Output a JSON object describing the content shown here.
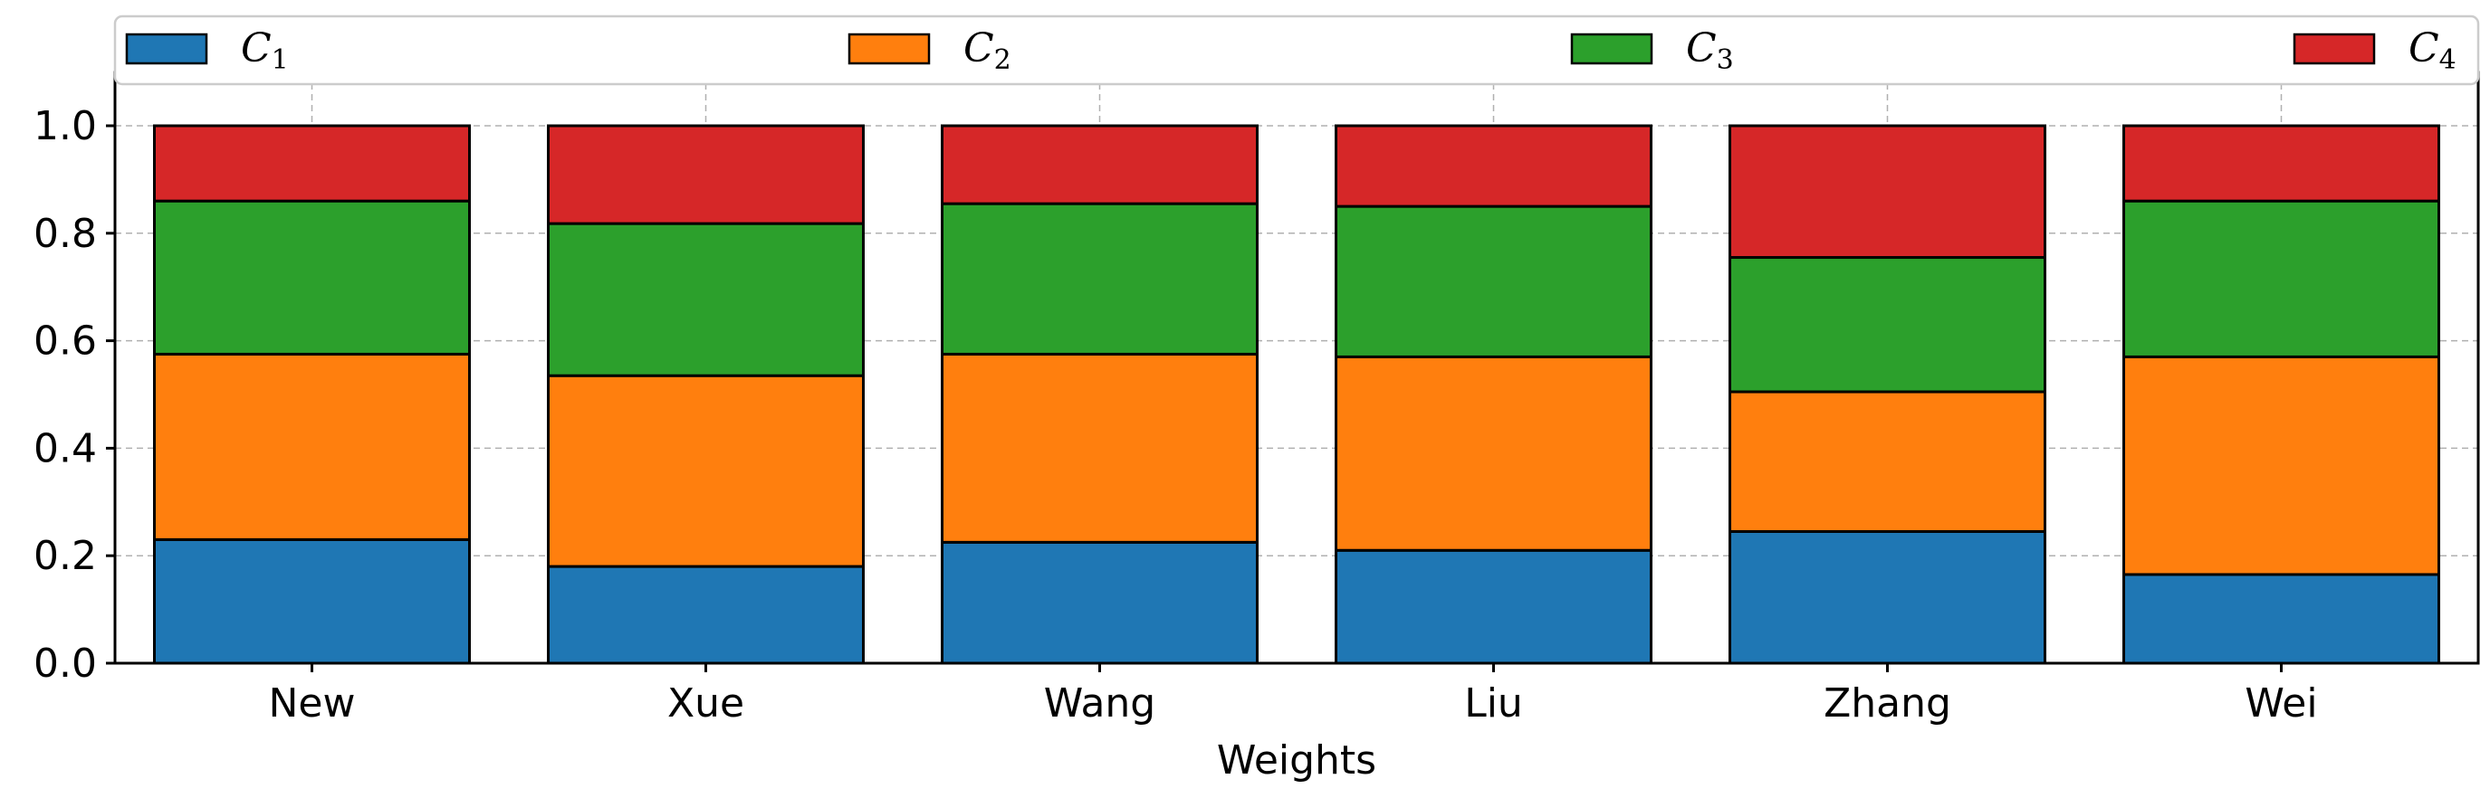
{
  "chart_data": {
    "type": "bar",
    "stacked": true,
    "categories": [
      "New",
      "Xue",
      "Wang",
      "Liu",
      "Zhang",
      "Wei"
    ],
    "series": [
      {
        "name": "C1",
        "color": "#1f77b4",
        "values": [
          0.23,
          0.18,
          0.225,
          0.21,
          0.245,
          0.165
        ]
      },
      {
        "name": "C2",
        "color": "#ff7f0e",
        "values": [
          0.345,
          0.355,
          0.35,
          0.36,
          0.26,
          0.405
        ]
      },
      {
        "name": "C3",
        "color": "#2ca02c",
        "values": [
          0.285,
          0.283,
          0.28,
          0.28,
          0.25,
          0.29
        ]
      },
      {
        "name": "C4",
        "color": "#d62728",
        "values": [
          0.14,
          0.182,
          0.145,
          0.15,
          0.245,
          0.14
        ]
      }
    ],
    "xlabel": "Weights",
    "ylabel": "",
    "ylim": [
      0,
      1.05
    ],
    "yticks": [
      "0.0",
      "0.2",
      "0.4",
      "0.6",
      "0.8",
      "1.0"
    ],
    "grid": true,
    "legend_position": "top"
  }
}
